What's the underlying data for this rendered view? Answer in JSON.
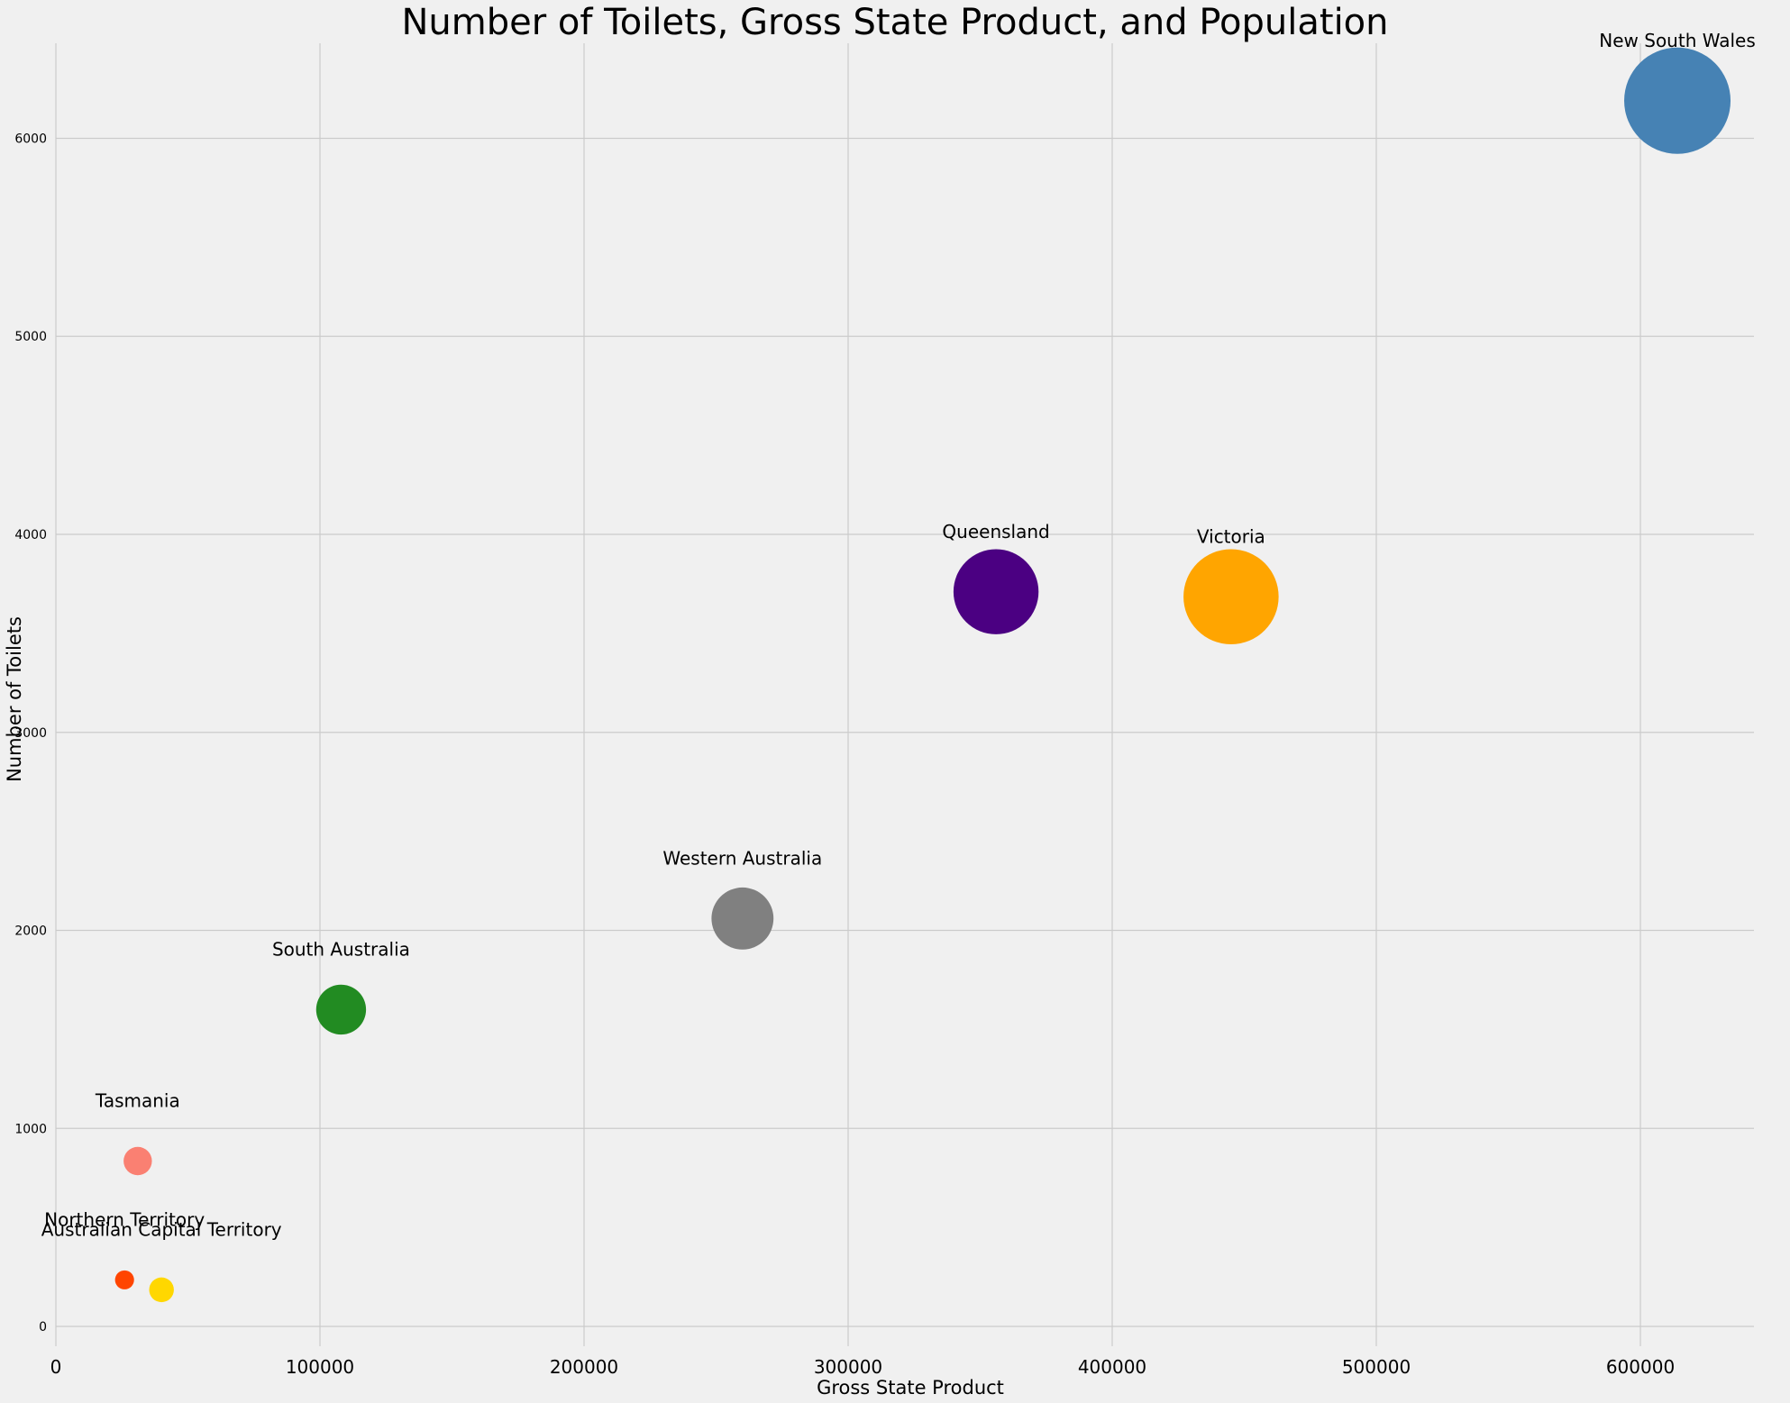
{
  "chart_data": {
    "type": "scatter",
    "title": "Number of Toilets, Gross State Product, and Population",
    "xlabel": "Gross State Product",
    "ylabel": "Number of Toilets",
    "xlim": [
      0,
      643000
    ],
    "ylim": [
      -100,
      6480
    ],
    "xticks": [
      0,
      100000,
      200000,
      300000,
      400000,
      500000,
      600000
    ],
    "yticks": [
      0,
      1000,
      2000,
      3000,
      4000,
      5000,
      6000
    ],
    "grid": true,
    "size_encoding": "Population",
    "points": [
      {
        "label": "New South Wales",
        "x": 614000,
        "y": 6190,
        "size_rel": 1.0,
        "color": "#4682b4"
      },
      {
        "label": "Victoria",
        "x": 445000,
        "y": 3685,
        "size_rel": 0.8,
        "color": "#ffa500"
      },
      {
        "label": "Queensland",
        "x": 356000,
        "y": 3710,
        "size_rel": 0.64,
        "color": "#4b0082"
      },
      {
        "label": "Western Australia",
        "x": 260000,
        "y": 2060,
        "size_rel": 0.34,
        "color": "#808080"
      },
      {
        "label": "South Australia",
        "x": 108000,
        "y": 1600,
        "size_rel": 0.22,
        "color": "#228b22"
      },
      {
        "label": "Tasmania",
        "x": 31000,
        "y": 835,
        "size_rel": 0.071,
        "color": "#fa8072"
      },
      {
        "label": "Northern Territory",
        "x": 26000,
        "y": 235,
        "size_rel": 0.032,
        "color": "#ff4500"
      },
      {
        "label": "Australian Capital Territory",
        "x": 40000,
        "y": 185,
        "size_rel": 0.054,
        "color": "#ffd700"
      }
    ]
  }
}
